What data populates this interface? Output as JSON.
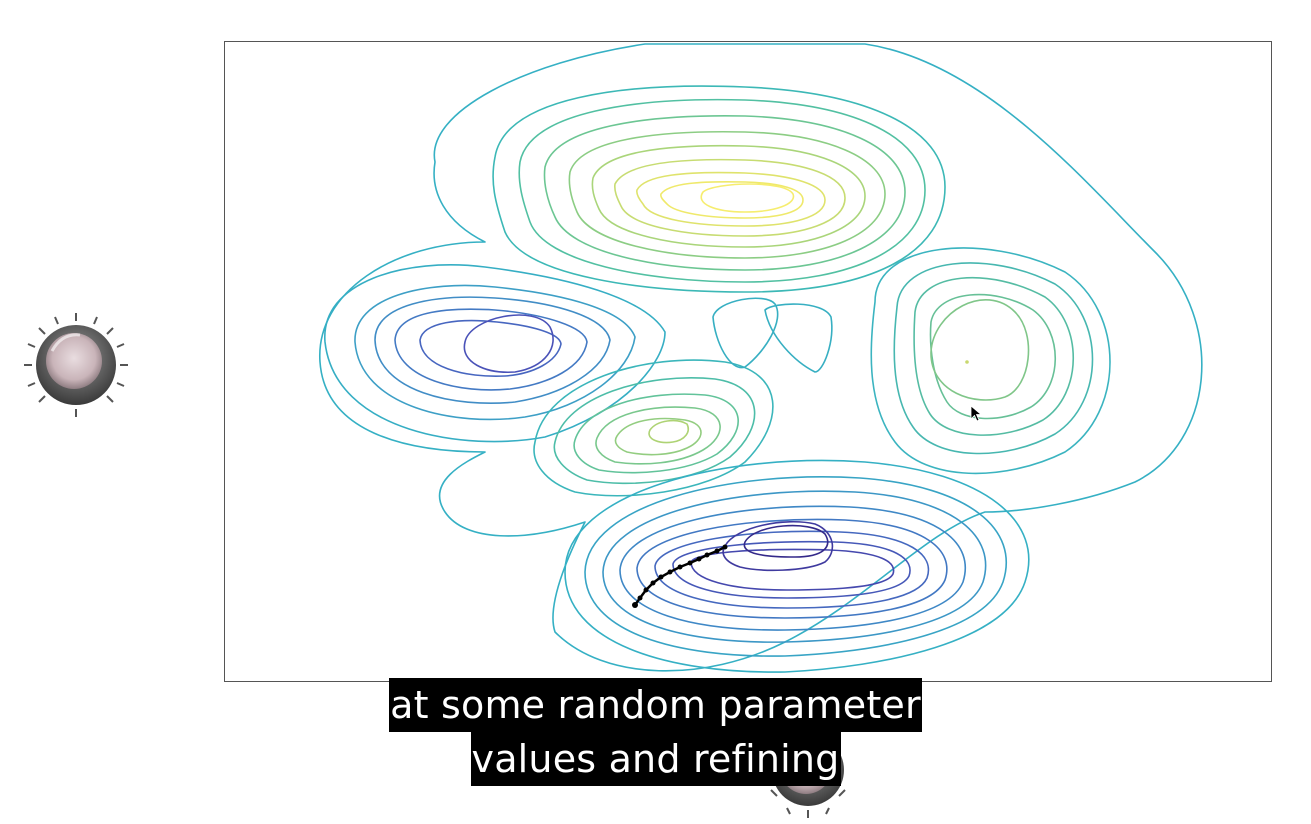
{
  "caption": {
    "line1": "at some random parameter",
    "line2": "values and refining"
  },
  "colors": {
    "frame": "#555555",
    "caption_bg": "#000000",
    "caption_text": "#ffffff",
    "contour_low": "#2a1b6e",
    "contour_mid": "#35b7c6",
    "contour_high": "#f4ef6a",
    "path": "#000000"
  },
  "icons": {
    "left_knob": "dial-knob-icon",
    "bottom_knob": "dial-knob-icon",
    "cursor": "mouse-pointer-icon"
  }
}
